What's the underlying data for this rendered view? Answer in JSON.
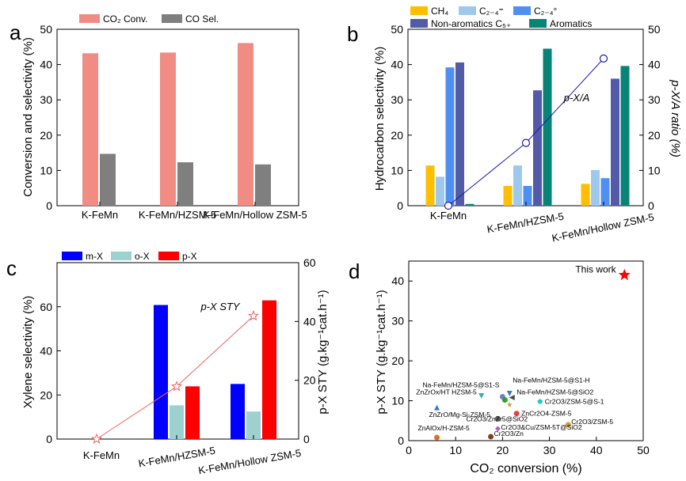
{
  "colors": {
    "co2_conv": "#f08c84",
    "co_sel": "#7f7f7f",
    "ch4": "#ffbf00",
    "c24_olef": "#9ec9ec",
    "c24_par": "#4f8ff2",
    "nonarom": "#535aa8",
    "arom": "#088476",
    "pxa_line": "#1a1ab8",
    "mx": "#0000ff",
    "ox": "#9cd1cf",
    "px": "#ff0000",
    "sty_line": "#f06060",
    "this_work": "#ff0000"
  },
  "chart_data": [
    {
      "panel": "a",
      "type": "bar",
      "categories": [
        "K-FeMn",
        "K-FeMn/HZSM-5",
        "K-FeMn/Hollow ZSM-5"
      ],
      "ylabel": "Conversion and selectivity (%)",
      "ylim": [
        0,
        50
      ],
      "yticks": [
        "0",
        "10",
        "20",
        "30",
        "40",
        "50"
      ],
      "series": [
        {
          "name": "CO2 Conv.",
          "values": [
            43.2,
            43.4,
            46.1
          ]
        },
        {
          "name": "CO Sel.",
          "values": [
            14.7,
            12.3,
            11.7
          ]
        }
      ],
      "legend_position": "top"
    },
    {
      "panel": "b",
      "type": "bar",
      "categories": [
        "K-FeMn",
        "K-FeMn/HZSM-5",
        "K-FeMn/Hollow ZSM-5"
      ],
      "ylabel": "Hydrocarbon selectivity (%)",
      "y2label": "p-X/A ratio (%)",
      "ylim": [
        0,
        50
      ],
      "y2lim": [
        0,
        50
      ],
      "yticks": [
        "0",
        "10",
        "20",
        "30",
        "40",
        "50"
      ],
      "series": [
        {
          "name": "CH4",
          "values": [
            11.4,
            5.6,
            6.2
          ]
        },
        {
          "name": "C2-4 olefin",
          "values": [
            8.2,
            11.4,
            10.1
          ]
        },
        {
          "name": "C2-4 paraffin",
          "values": [
            39.2,
            5.6,
            7.8
          ]
        },
        {
          "name": "Non-aromatics C5+",
          "values": [
            40.6,
            32.7,
            36.0
          ]
        },
        {
          "name": "Aromatics",
          "values": [
            0.5,
            44.5,
            39.6
          ]
        }
      ],
      "line_series": {
        "name": "p-X/A",
        "axis": "right",
        "values": [
          0,
          17.8,
          41.7
        ]
      },
      "legend_position": "top"
    },
    {
      "panel": "c",
      "type": "bar",
      "categories": [
        "K-FeMn",
        "K-FeMn/HZSM-5",
        "K-FeMn/Hollow ZSM-5"
      ],
      "ylabel": "Xylene selectivity (%)",
      "y2label": "p-X STY (g.kgcat-1.h-1)",
      "ylim": [
        0,
        80
      ],
      "y2lim": [
        0,
        60
      ],
      "yticks": [
        "0",
        "20",
        "40",
        "60"
      ],
      "y2ticks": [
        "0",
        "20",
        "40",
        "60"
      ],
      "series": [
        {
          "name": "m-X",
          "values": [
            0,
            60.8,
            25.0
          ]
        },
        {
          "name": "o-X",
          "values": [
            0,
            15.3,
            12.5
          ]
        },
        {
          "name": "p-X",
          "values": [
            0,
            23.9,
            62.9
          ]
        }
      ],
      "line_series": {
        "name": "p-X STY",
        "axis": "right",
        "values": [
          0,
          17.9,
          41.9
        ]
      },
      "legend_position": "top"
    },
    {
      "panel": "d",
      "type": "scatter",
      "xlabel": "CO2 conversion (%)",
      "ylabel": "p-X STY (g.kgcat-1.h-1)",
      "xlim": [
        0,
        50
      ],
      "ylim": [
        0,
        45
      ],
      "xticks": [
        "0",
        "10",
        "20",
        "30",
        "40",
        "50"
      ],
      "yticks": [
        "0",
        "10",
        "20",
        "30",
        "40"
      ],
      "points": [
        {
          "label": "Na-FeMn/HZSM-5@S1-S",
          "x": 20.0,
          "y": 11.0,
          "color": "#7080c8",
          "marker": "circle"
        },
        {
          "label": "Na-FeMn/HZSM-5@S1-H",
          "x": 21.5,
          "y": 11.8,
          "color": "#3c78b8",
          "marker": "triangle-down"
        },
        {
          "label": "ZnZrOx/HT HZSM-5",
          "x": 15.5,
          "y": 11.2,
          "color": "#30b0b0",
          "marker": "triangle-down"
        },
        {
          "label": "Na-FeMn/HZSM-5@SiO2",
          "x": 22.0,
          "y": 10.8,
          "color": "#4a4a4a",
          "marker": "triangle-left"
        },
        {
          "label": "Cr2O3/ZSM-5@S-1",
          "x": 28.0,
          "y": 9.8,
          "color": "#20c8c8",
          "marker": "pentagon"
        },
        {
          "label": "ZnZrO/Mg-Si-ZSM-5",
          "x": 6.0,
          "y": 8.3,
          "color": "#3c78c8",
          "marker": "triangle-up"
        },
        {
          "label": "",
          "x": 20.5,
          "y": 10.2,
          "color": "#30a030",
          "marker": "circle"
        },
        {
          "label": "",
          "x": 21.5,
          "y": 9.0,
          "color": "#c8a020",
          "marker": "star"
        },
        {
          "label": "ZnCr2O4-ZSM-5",
          "x": 23.0,
          "y": 6.8,
          "color": "#e04040",
          "marker": "circle"
        },
        {
          "label": "Cr2O3/ZnZr5@SiO2",
          "x": 19.0,
          "y": 5.5,
          "color": "#606060",
          "marker": "circle"
        },
        {
          "label": "Cr2O3/ZSM-5",
          "x": 34.0,
          "y": 4.0,
          "color": "#d0a030",
          "marker": "circle"
        },
        {
          "label": "ZnAlOx/H-ZSM-5",
          "x": 6.0,
          "y": 0.8,
          "color": "#e07020",
          "marker": "circle"
        },
        {
          "label": "Cr2O3&Cu/ZSM-5T@SiO2",
          "x": 19.0,
          "y": 3.0,
          "color": "#b060c0",
          "marker": "diamond"
        },
        {
          "label": "Cr2O3/Zn",
          "x": 17.5,
          "y": 1.0,
          "color": "#804020",
          "marker": "circle"
        },
        {
          "label": "This work",
          "x": 46.0,
          "y": 41.5,
          "color": "#ff0000",
          "marker": "star"
        }
      ]
    }
  ],
  "labels": {
    "panel_a": "a",
    "panel_b": "b",
    "panel_c": "c",
    "panel_d": "d",
    "a_ylabel": "Conversion and selectivity (%)",
    "a_leg1": "CO₂ Conv.",
    "a_leg2": "CO Sel.",
    "b_ylabel": "Hydrocarbon selectivity (%)",
    "b_y2label": "p-X/A ratio (%)",
    "b_leg_ch4": "CH₄",
    "b_leg_c24o": "C₂₋₄⁼",
    "b_leg_c24p": "C₂₋₄°",
    "b_leg_nonarom": "Non-aromatics C₅₊",
    "b_leg_arom": "Aromatics",
    "b_line_label": "p-X/A",
    "c_ylabel": "Xylene selectivity (%)",
    "c_y2label": "p-X STY (g.kg⁻¹cat.h⁻¹)",
    "c_leg_mx": "m-X",
    "c_leg_ox": "o-X",
    "c_leg_px": "p-X",
    "c_line_label": "p-X STY",
    "d_xlabel": "CO₂ conversion (%)",
    "d_ylabel": "p-X STY (g.kg⁻¹cat.h⁻¹)",
    "d_this_work": "This work"
  }
}
